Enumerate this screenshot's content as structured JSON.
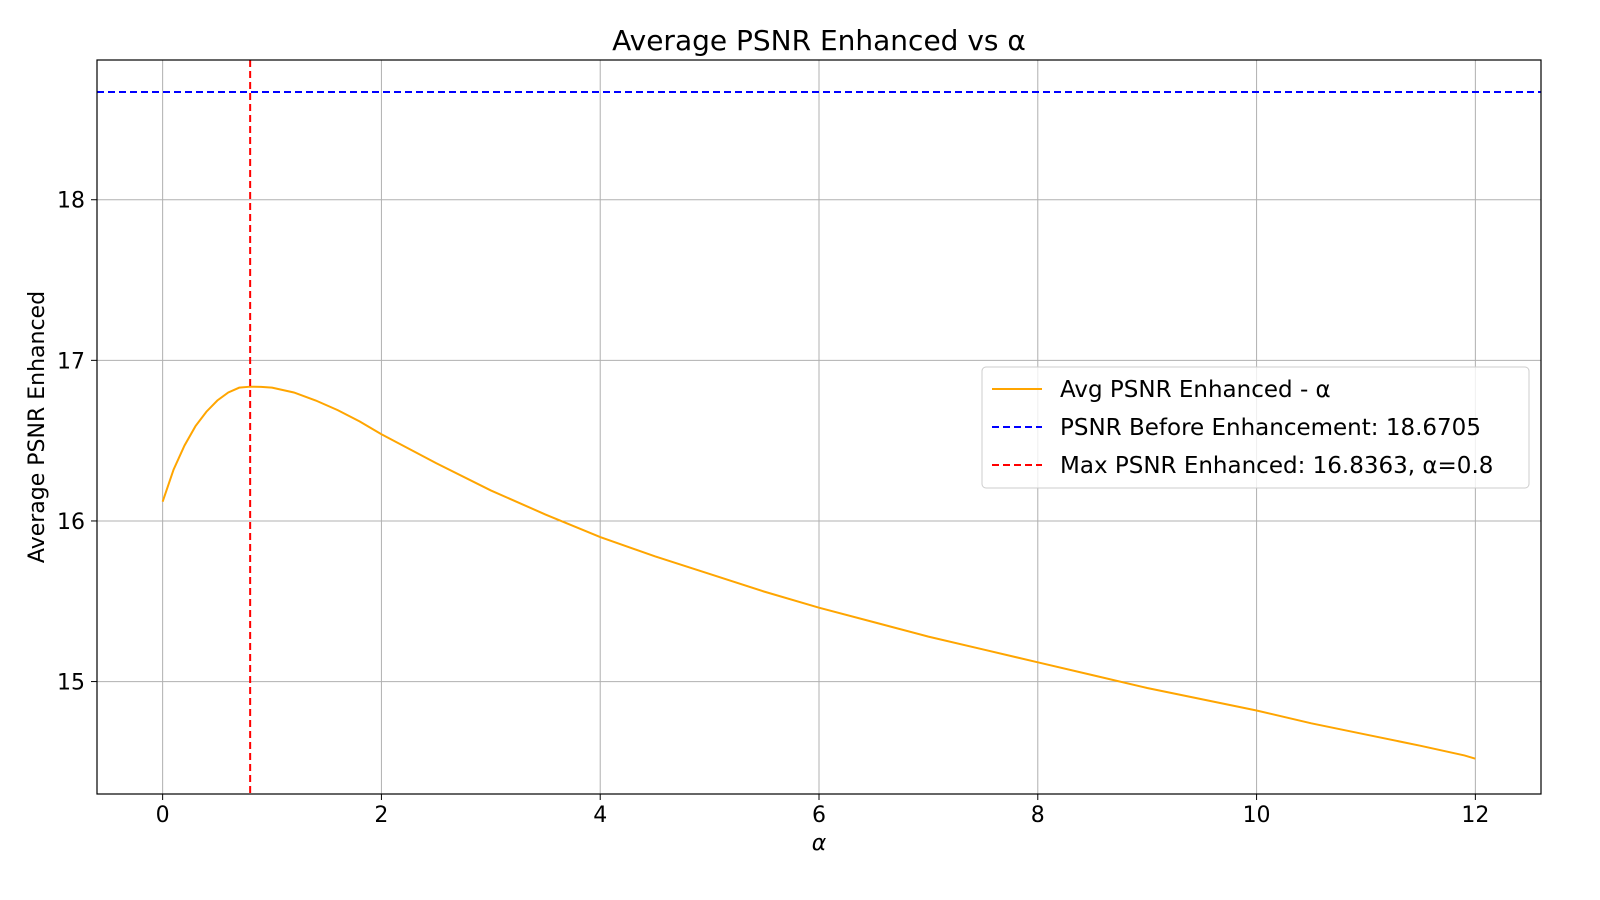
{
  "chart_data": {
    "type": "line",
    "title": "Average PSNR Enhanced vs α",
    "xlabel": "α",
    "ylabel": "Average PSNR Enhanced",
    "xlim": [
      -0.6,
      12.6
    ],
    "ylim": [
      14.3,
      18.87
    ],
    "xticks": [
      0,
      2,
      4,
      6,
      8,
      10,
      12
    ],
    "yticks": [
      15,
      16,
      17,
      18
    ],
    "grid": true,
    "legend_position": "center-right",
    "series": [
      {
        "name": "Avg PSNR Enhanced - α",
        "color": "#ffa500",
        "style": "solid",
        "x": [
          0,
          0.1,
          0.2,
          0.3,
          0.4,
          0.5,
          0.6,
          0.7,
          0.8,
          0.9,
          1.0,
          1.2,
          1.4,
          1.6,
          1.8,
          2.0,
          2.5,
          3.0,
          3.5,
          4.0,
          4.5,
          5.0,
          5.5,
          6.0,
          6.5,
          7.0,
          7.5,
          8.0,
          8.5,
          9.0,
          9.5,
          10.0,
          10.5,
          11.0,
          11.5,
          11.9,
          12.0
        ],
        "y": [
          16.12,
          16.32,
          16.47,
          16.59,
          16.68,
          16.75,
          16.8,
          16.83,
          16.836,
          16.835,
          16.83,
          16.8,
          16.75,
          16.69,
          16.62,
          16.54,
          16.36,
          16.19,
          16.04,
          15.9,
          15.78,
          15.67,
          15.56,
          15.46,
          15.37,
          15.28,
          15.2,
          15.12,
          15.04,
          14.96,
          14.89,
          14.82,
          14.74,
          14.67,
          14.6,
          14.54,
          14.52
        ]
      },
      {
        "name": "PSNR Before Enhancement: 18.6705",
        "color": "#0000ff",
        "style": "dashed",
        "type": "hline",
        "y": 18.6705
      },
      {
        "name": "Max PSNR Enhanced: 16.8363, α=0.8",
        "color": "#ff0000",
        "style": "dashed",
        "type": "vline",
        "x": 0.8
      }
    ]
  }
}
